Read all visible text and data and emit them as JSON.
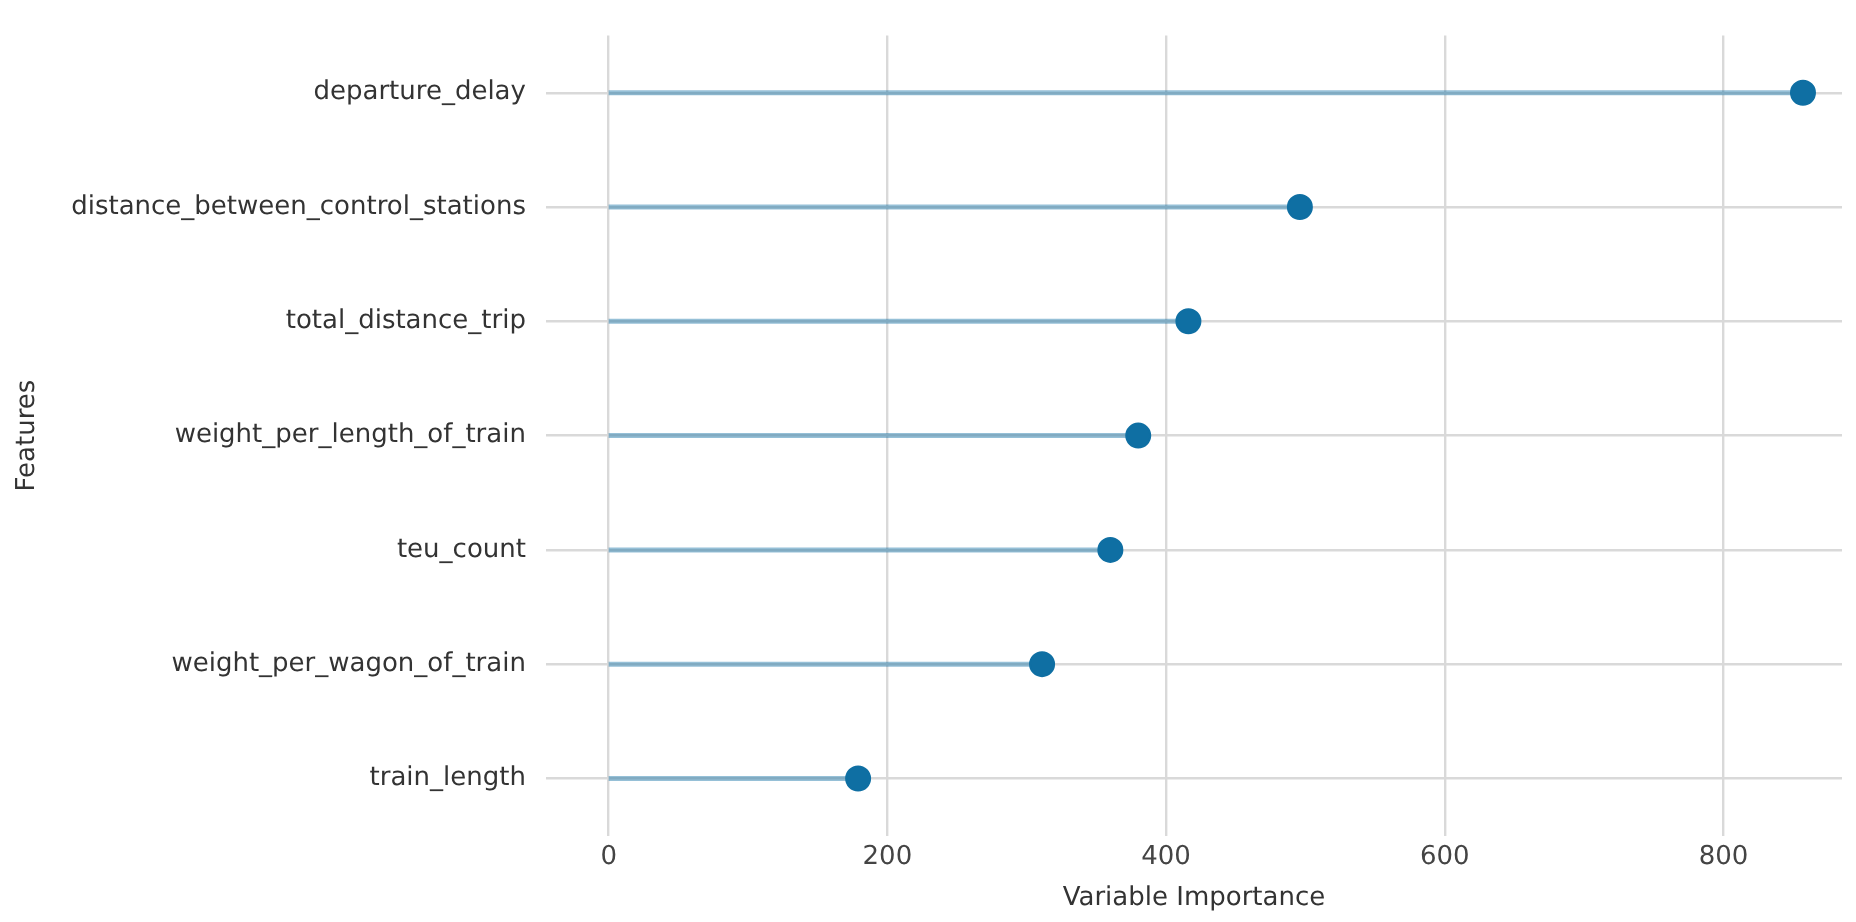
{
  "chart_data": {
    "type": "lollipop",
    "orientation": "horizontal",
    "xlabel": "Variable Importance",
    "ylabel": "Features",
    "categories": [
      "departure_delay",
      "distance_between_control_stations",
      "total_distance_trip",
      "weight_per_length_of_train",
      "teu_count",
      "weight_per_wagon_of_train",
      "train_length"
    ],
    "series": [
      {
        "color": "#0f6fa3",
        "values": [
          857,
          496,
          416,
          380,
          360,
          311,
          179
        ]
      }
    ],
    "xlim": [
      -45,
      885
    ],
    "xticks": [
      0,
      200,
      400,
      600,
      800
    ],
    "grid": true,
    "marker": "circle",
    "legend": false
  }
}
